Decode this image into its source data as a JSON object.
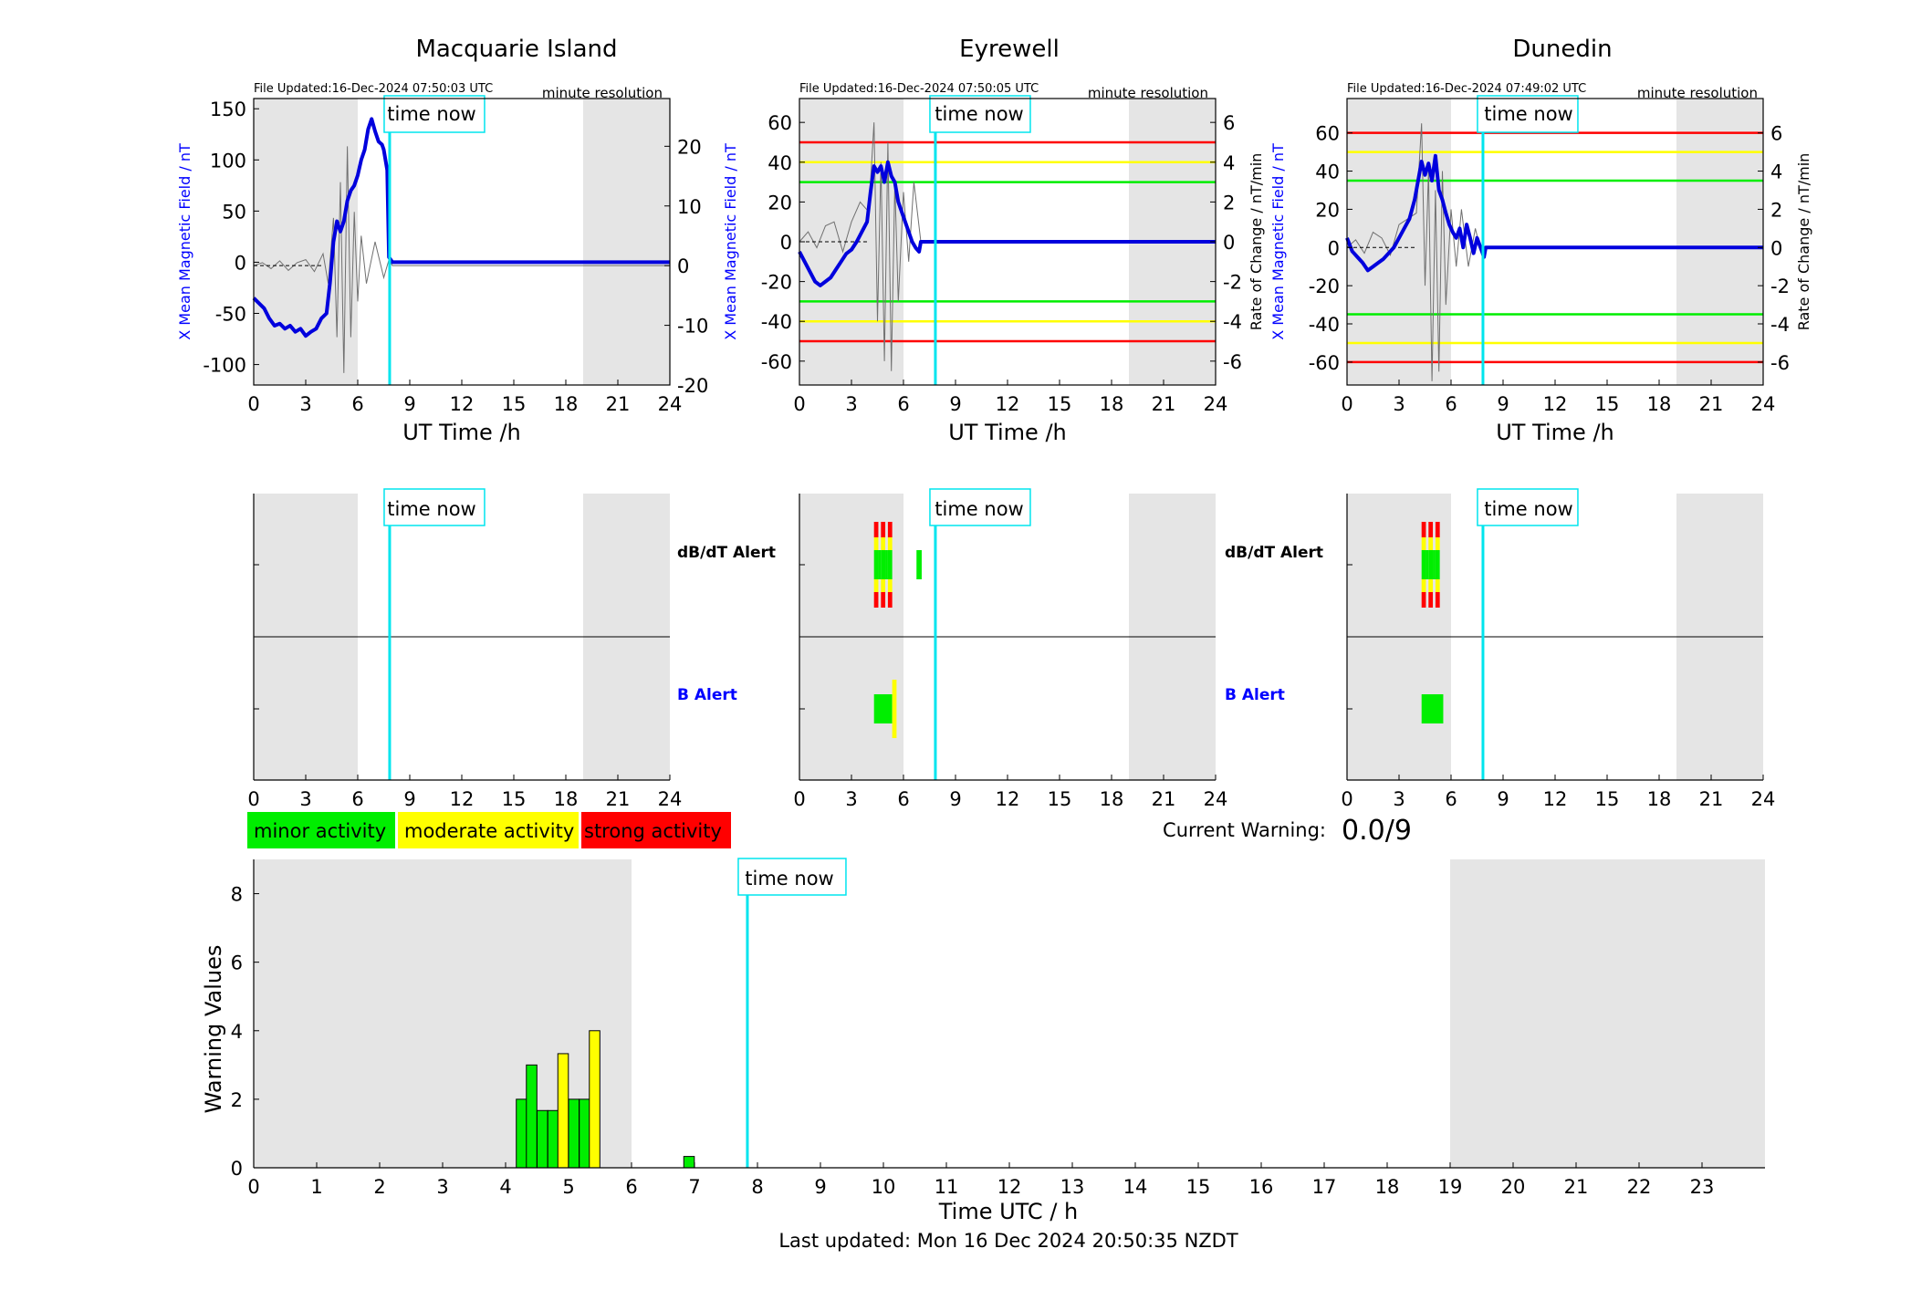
{
  "colors": {
    "field_line": "#0000dd",
    "roc_trace": "#707070",
    "time_now": "#00e5ee",
    "night_shade": "#e5e5e5",
    "minor": "#00ee00",
    "moderate": "#ffff00",
    "strong": "#ff0000",
    "b_alert_label": "#0000ff",
    "dbdt_alert_label": "#000000",
    "left_axis": "#0000ff",
    "right_axis": "#000000"
  },
  "time_now_label": "time now",
  "time_now_hour": 7.84,
  "night_shade_hours": [
    [
      0,
      6
    ],
    [
      19,
      24
    ]
  ],
  "top_xlabel": "UT Time /h",
  "top_xticks": [
    0,
    3,
    6,
    9,
    12,
    15,
    18,
    21,
    24
  ],
  "left_ylabel": "X Mean Magnetic Field / nT",
  "right_ylabel": "Rate of Change / nT/min",
  "resolution_note": "minute resolution",
  "stations": [
    {
      "name": "Macquarie Island",
      "file_updated": "File Updated:16-Dec-2024 07:50:03 UTC",
      "left_ylim": [
        -120,
        160
      ],
      "left_ticks": [
        -100,
        -50,
        0,
        50,
        100,
        150
      ],
      "right_ylim": [
        -20,
        28
      ],
      "right_ticks": [
        -20,
        -10,
        0,
        10,
        20
      ],
      "thresholds": [],
      "show_left_label": true,
      "show_right_label": false,
      "field_x": [
        0,
        0.3,
        0.6,
        0.9,
        1.2,
        1.5,
        1.8,
        2.1,
        2.4,
        2.7,
        3.0,
        3.3,
        3.6,
        3.9,
        4.2,
        4.4,
        4.6,
        4.8,
        5.0,
        5.2,
        5.4,
        5.6,
        5.8,
        6.0,
        6.2,
        6.4,
        6.6,
        6.8,
        7.0,
        7.2,
        7.4,
        7.5,
        7.6,
        7.7,
        7.8,
        8,
        24
      ],
      "field_y": [
        -35,
        -40,
        -45,
        -55,
        -62,
        -60,
        -65,
        -62,
        -68,
        -65,
        -72,
        -68,
        -65,
        -55,
        -50,
        -20,
        20,
        40,
        30,
        40,
        60,
        70,
        75,
        85,
        100,
        110,
        130,
        140,
        128,
        118,
        115,
        110,
        100,
        90,
        5,
        0,
        0
      ],
      "roc_x": [
        0,
        0.5,
        1,
        1.5,
        2,
        2.5,
        3,
        3.5,
        4,
        4.3,
        4.6,
        4.8,
        5.0,
        5.2,
        5.4,
        5.6,
        5.8,
        6.0,
        6.2,
        6.5,
        7.0,
        7.5,
        7.8,
        8,
        24
      ],
      "roc_y": [
        0,
        0.5,
        -0.5,
        0.8,
        -0.8,
        0.5,
        1,
        -1,
        2,
        -3,
        8,
        -12,
        14,
        -18,
        20,
        -12,
        9,
        -6,
        5,
        -3,
        4,
        -2,
        1,
        0,
        0
      ],
      "dbdt_bars": [],
      "b_bars": []
    },
    {
      "name": "Eyrewell",
      "file_updated": "File Updated:16-Dec-2024 07:50:05 UTC",
      "left_ylim": [
        -72,
        72
      ],
      "left_ticks": [
        -60,
        -40,
        -20,
        0,
        20,
        40,
        60
      ],
      "right_ylim": [
        -7.2,
        7.2
      ],
      "right_ticks": [
        -6,
        -4,
        -2,
        0,
        2,
        4,
        6
      ],
      "thresholds": [
        {
          "value": 50,
          "level": "strong"
        },
        {
          "value": 40,
          "level": "moderate"
        },
        {
          "value": 30,
          "level": "minor"
        },
        {
          "value": -30,
          "level": "minor"
        },
        {
          "value": -40,
          "level": "moderate"
        },
        {
          "value": -50,
          "level": "strong"
        }
      ],
      "show_left_label": true,
      "show_right_label": true,
      "field_x": [
        0,
        0.3,
        0.6,
        0.9,
        1.2,
        1.5,
        1.8,
        2.1,
        2.4,
        2.7,
        3.0,
        3.3,
        3.6,
        3.9,
        4.1,
        4.3,
        4.5,
        4.7,
        4.9,
        5.1,
        5.3,
        5.5,
        5.7,
        5.9,
        6.1,
        6.3,
        6.5,
        6.7,
        6.9,
        7.0,
        7.1,
        24
      ],
      "field_y": [
        -5,
        -10,
        -15,
        -20,
        -22,
        -20,
        -18,
        -14,
        -10,
        -6,
        -4,
        0,
        5,
        10,
        25,
        38,
        35,
        38,
        30,
        40,
        33,
        30,
        20,
        15,
        10,
        5,
        0,
        -3,
        -5,
        0,
        0,
        0
      ],
      "roc_x": [
        0,
        0.5,
        1,
        1.5,
        2,
        2.5,
        3,
        3.5,
        4,
        4.3,
        4.5,
        4.7,
        4.9,
        5.1,
        5.3,
        5.5,
        5.7,
        6.0,
        6.3,
        6.6,
        7.0,
        24
      ],
      "roc_y": [
        0,
        0.5,
        -0.3,
        0.8,
        1,
        -0.5,
        1,
        2,
        1.5,
        6,
        -4,
        4,
        -6,
        5,
        -6.5,
        3,
        -3,
        2.5,
        -1,
        3,
        0,
        0
      ],
      "dbdt_bars": [
        {
          "start": 4.3,
          "end": 4.55,
          "pattern": "full"
        },
        {
          "start": 4.55,
          "end": 4.7,
          "pattern": "center"
        },
        {
          "start": 4.7,
          "end": 4.95,
          "pattern": "full"
        },
        {
          "start": 4.95,
          "end": 5.1,
          "pattern": "center"
        },
        {
          "start": 5.1,
          "end": 5.35,
          "pattern": "full"
        },
        {
          "start": 6.75,
          "end": 7.05,
          "pattern": "minor_only"
        }
      ],
      "b_bars": [
        {
          "start": 4.3,
          "end": 5.35,
          "level": "minor"
        },
        {
          "start": 5.35,
          "end": 5.6,
          "level": "moderate"
        }
      ]
    },
    {
      "name": "Dunedin",
      "file_updated": "File Updated:16-Dec-2024 07:49:02 UTC",
      "left_ylim": [
        -72,
        78
      ],
      "left_ticks": [
        -60,
        -40,
        -20,
        0,
        20,
        40,
        60
      ],
      "right_ylim": [
        -7.2,
        7.8
      ],
      "right_ticks": [
        -6,
        -4,
        -2,
        0,
        2,
        4,
        6
      ],
      "thresholds": [
        {
          "value": 60,
          "level": "strong"
        },
        {
          "value": 50,
          "level": "moderate"
        },
        {
          "value": 35,
          "level": "minor"
        },
        {
          "value": -35,
          "level": "minor"
        },
        {
          "value": -50,
          "level": "moderate"
        },
        {
          "value": -60,
          "level": "strong"
        }
      ],
      "show_left_label": true,
      "show_right_label": true,
      "field_x": [
        0,
        0.3,
        0.6,
        0.9,
        1.2,
        1.5,
        1.8,
        2.1,
        2.4,
        2.7,
        3.0,
        3.3,
        3.6,
        3.9,
        4.1,
        4.3,
        4.5,
        4.7,
        4.9,
        5.1,
        5.3,
        5.5,
        5.7,
        5.9,
        6.1,
        6.3,
        6.5,
        6.7,
        6.9,
        7.1,
        7.3,
        7.5,
        7.7,
        7.9,
        8.0,
        24
      ],
      "field_y": [
        5,
        -2,
        -5,
        -8,
        -12,
        -10,
        -8,
        -6,
        -3,
        0,
        5,
        10,
        15,
        25,
        35,
        45,
        38,
        44,
        35,
        48,
        30,
        25,
        18,
        12,
        8,
        5,
        10,
        0,
        12,
        5,
        -3,
        5,
        0,
        -5,
        0,
        0
      ],
      "roc_x": [
        0,
        0.5,
        1,
        1.5,
        2,
        2.5,
        3,
        3.5,
        4,
        4.3,
        4.5,
        4.7,
        4.9,
        5.1,
        5.3,
        5.5,
        5.7,
        6.0,
        6.3,
        6.6,
        7.0,
        7.4,
        7.8,
        8.0,
        24
      ],
      "roc_y": [
        0,
        0.4,
        -0.3,
        0.8,
        0.5,
        -0.4,
        1.2,
        1.5,
        1.8,
        6.5,
        -2,
        4,
        -7,
        3,
        -6.5,
        4,
        -3,
        2,
        -1,
        2,
        -1,
        1,
        -0.5,
        0,
        0
      ],
      "dbdt_bars": [
        {
          "start": 4.3,
          "end": 4.55,
          "pattern": "full"
        },
        {
          "start": 4.55,
          "end": 4.7,
          "pattern": "center"
        },
        {
          "start": 4.7,
          "end": 4.95,
          "pattern": "full"
        },
        {
          "start": 4.95,
          "end": 5.1,
          "pattern": "center"
        },
        {
          "start": 5.1,
          "end": 5.35,
          "pattern": "full"
        }
      ],
      "b_bars": [
        {
          "start": 4.3,
          "end": 5.55,
          "level": "minor"
        }
      ]
    }
  ],
  "alert_labels": {
    "dbdt": "dB/dT Alert",
    "b": "B Alert"
  },
  "legend": {
    "minor": "minor activity",
    "moderate": "moderate activity",
    "strong": "strong activity"
  },
  "current_warning": {
    "label": "Current Warning:",
    "value": "0.0/9"
  },
  "chart_data": {
    "type": "bar",
    "xlabel": "Time UTC / h",
    "ylabel": "Warning Values",
    "xlim": [
      0,
      24
    ],
    "ylim": [
      0,
      9
    ],
    "xticks": [
      0,
      1,
      2,
      3,
      4,
      5,
      6,
      7,
      8,
      9,
      10,
      11,
      12,
      13,
      14,
      15,
      16,
      17,
      18,
      19,
      20,
      21,
      22,
      23
    ],
    "yticks": [
      0,
      2,
      4,
      6,
      8
    ],
    "bars": [
      {
        "x": 4.17,
        "width": 0.167,
        "value": 2,
        "level": "minor"
      },
      {
        "x": 4.33,
        "width": 0.167,
        "value": 3,
        "level": "minor"
      },
      {
        "x": 4.5,
        "width": 0.167,
        "value": 1.67,
        "level": "minor"
      },
      {
        "x": 4.67,
        "width": 0.167,
        "value": 1.67,
        "level": "minor"
      },
      {
        "x": 4.83,
        "width": 0.167,
        "value": 3.33,
        "level": "moderate"
      },
      {
        "x": 5.0,
        "width": 0.167,
        "value": 2,
        "level": "minor"
      },
      {
        "x": 5.17,
        "width": 0.167,
        "value": 2,
        "level": "minor"
      },
      {
        "x": 5.33,
        "width": 0.167,
        "value": 4,
        "level": "moderate"
      },
      {
        "x": 6.83,
        "width": 0.167,
        "value": 0.33,
        "level": "minor"
      }
    ]
  },
  "last_updated": "Last updated: Mon 16 Dec 2024 20:50:35 NZDT"
}
